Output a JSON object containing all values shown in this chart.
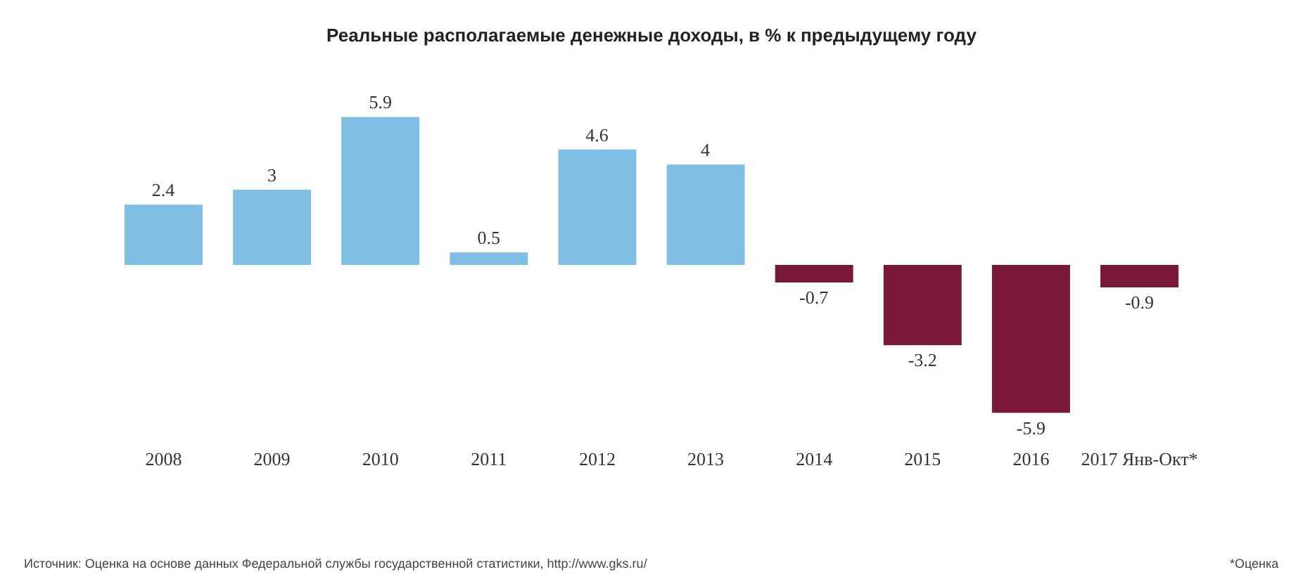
{
  "chart_data": {
    "type": "bar",
    "title": "Реальные располагаемые денежные доходы, в % к предыдущему году",
    "categories": [
      "2008",
      "2009",
      "2010",
      "2011",
      "2012",
      "2013",
      "2014",
      "2015",
      "2016",
      "2017 Янв-Окт*"
    ],
    "values": [
      2.4,
      3,
      5.9,
      0.5,
      4.6,
      4,
      -0.7,
      -3.2,
      -5.9,
      -0.9
    ],
    "colors": [
      "#7fbfe3",
      "#7fbfe3",
      "#7fbfe3",
      "#7fbfe3",
      "#7fbfe3",
      "#7fbfe3",
      "#7a1838",
      "#7a1838",
      "#7a1838",
      "#7a1838"
    ],
    "data_labels": true,
    "annotations": [
      "Источник: Оценка на основе данных Федеральной службы государственной статистики, http://www.gks.ru/",
      "*Оценка"
    ]
  }
}
